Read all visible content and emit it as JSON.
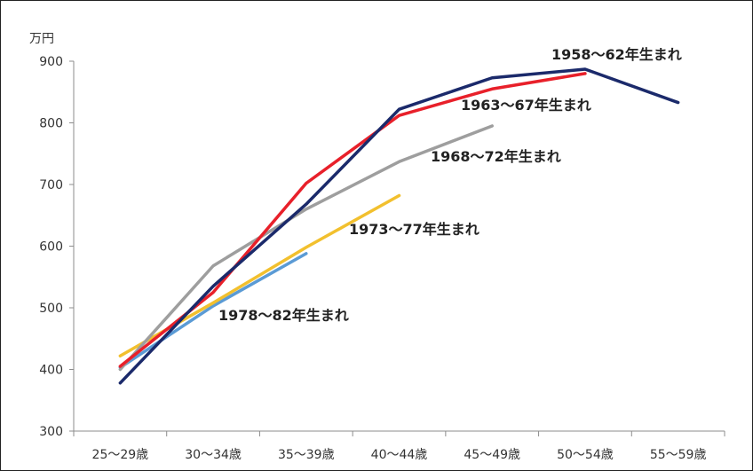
{
  "chart_data": {
    "type": "line",
    "unit_label": "万円",
    "categories": [
      "25～29歳",
      "30～34歳",
      "35～39歳",
      "40～44歳",
      "45～49歳",
      "50～54歳",
      "55～59歳"
    ],
    "ylim": [
      300,
      900
    ],
    "yticks": [
      300,
      400,
      500,
      600,
      700,
      800,
      900
    ],
    "grid": false,
    "series": [
      {
        "name": "1958～62年生まれ",
        "color": "#1b2a6b",
        "values": [
          378,
          535,
          668,
          822,
          873,
          887,
          833
        ]
      },
      {
        "name": "1963～67年生まれ",
        "color": "#e8202a",
        "values": [
          405,
          525,
          702,
          812,
          855,
          880,
          null
        ]
      },
      {
        "name": "1968～72年生まれ",
        "color": "#9e9e9e",
        "values": [
          400,
          568,
          660,
          737,
          795,
          null,
          null
        ]
      },
      {
        "name": "1973～77年生まれ",
        "color": "#f2c02e",
        "values": [
          422,
          508,
          598,
          682,
          null,
          null,
          null
        ]
      },
      {
        "name": "1978～82年生まれ",
        "color": "#5b9bd5",
        "values": [
          403,
          503,
          588,
          null,
          null,
          null,
          null
        ]
      }
    ]
  }
}
